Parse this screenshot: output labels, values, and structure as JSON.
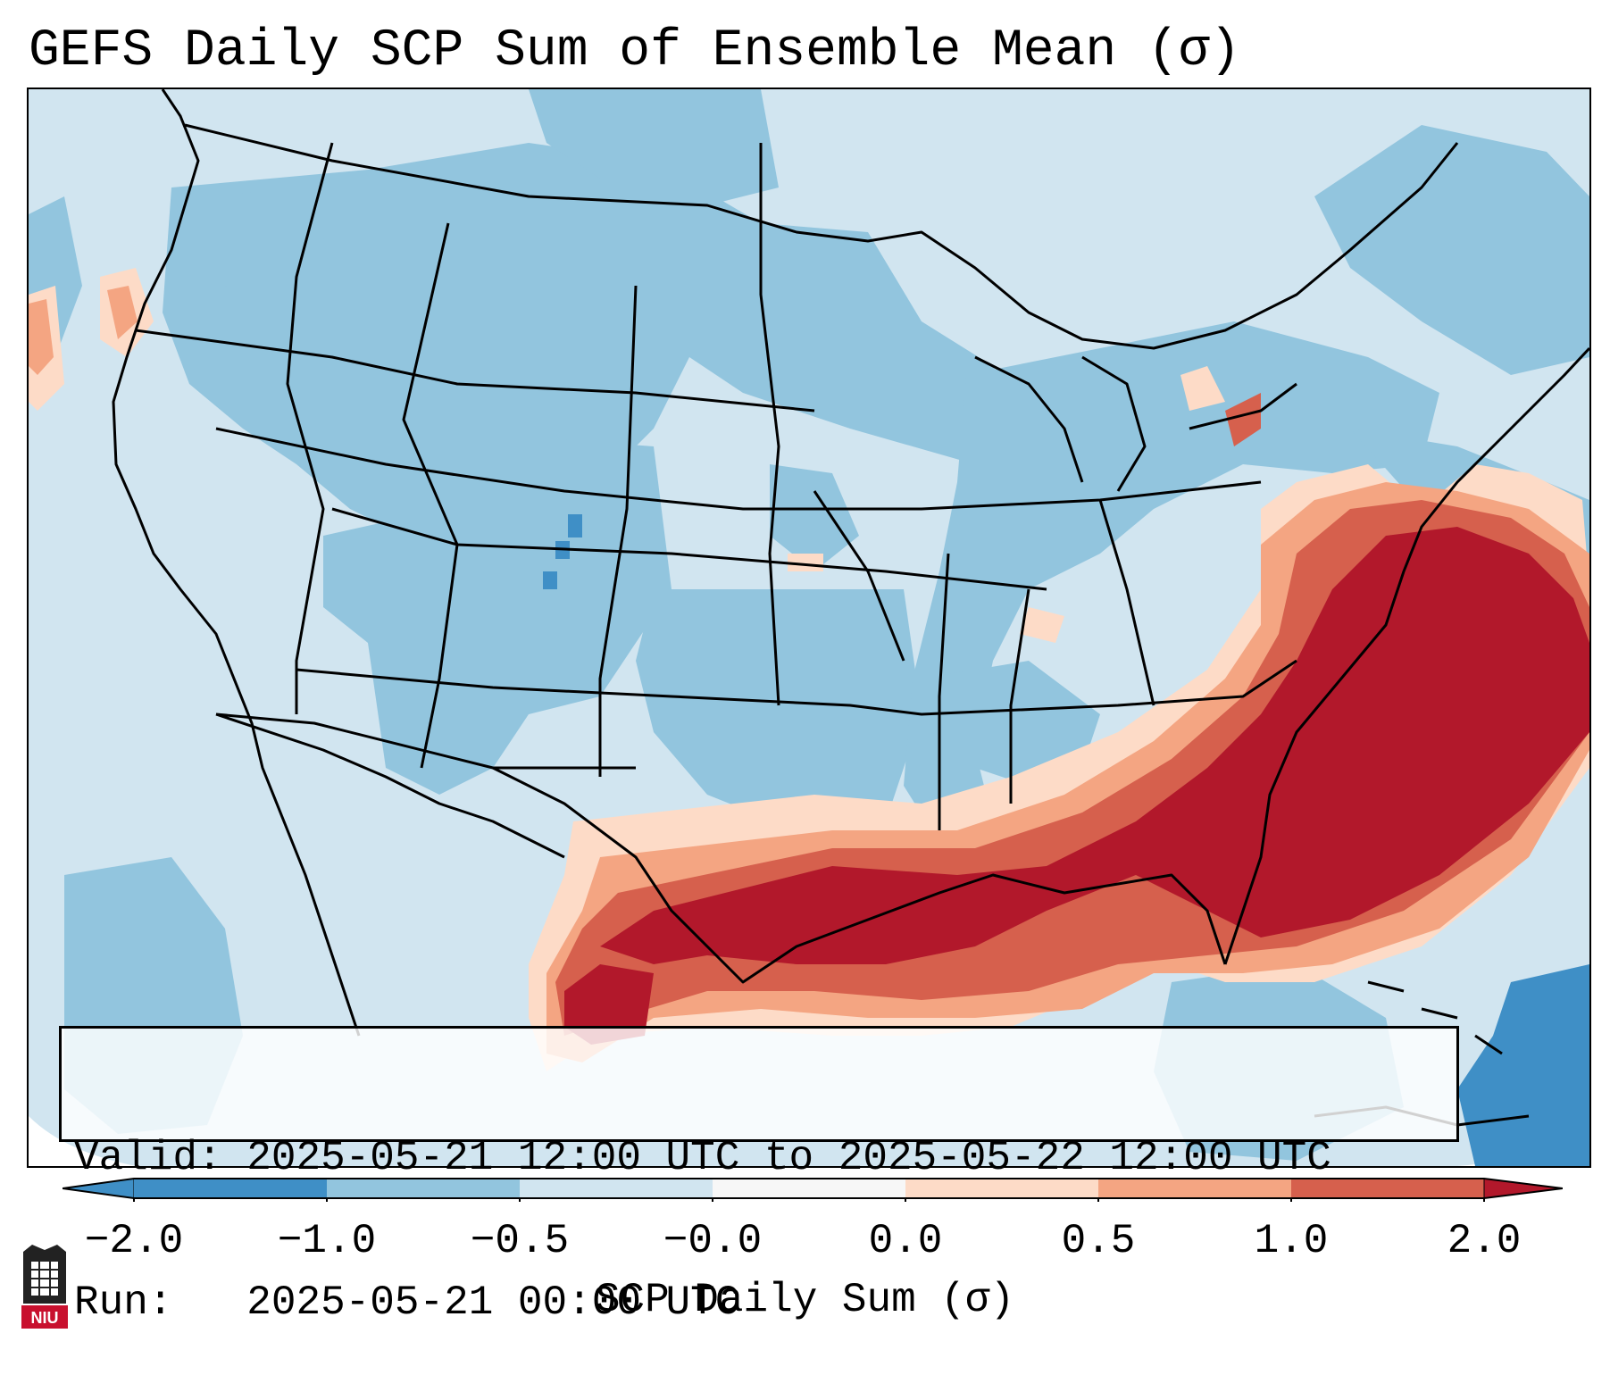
{
  "title": "GEFS Daily SCP Sum of Ensemble Mean (σ)",
  "info": {
    "valid_label": "Valid:",
    "valid_value": "2025-05-21 12:00 UTC to 2025-05-22 12:00 UTC",
    "run_label": "Run:",
    "run_value": "2025-05-21 00:00 UTC"
  },
  "colorbar": {
    "label": "SCP Daily Sum (σ)",
    "ticks": [
      "−2.0",
      "−1.0",
      "−0.5",
      "−0.0",
      "0.0",
      "0.5",
      "1.0",
      "2.0"
    ],
    "colors": {
      "below": "#3f8fc6",
      "m2_m1": "#3f8fc6",
      "m1_m05": "#92c5de",
      "m05_0": "#d1e5f0",
      "zero": "#f7f7f7",
      "p0_05": "#fddbc7",
      "p05_1": "#f4a582",
      "p1_2": "#d6604d",
      "above": "#b2182b"
    }
  },
  "logo": {
    "text": "NIU",
    "color": "#c8102e"
  }
}
